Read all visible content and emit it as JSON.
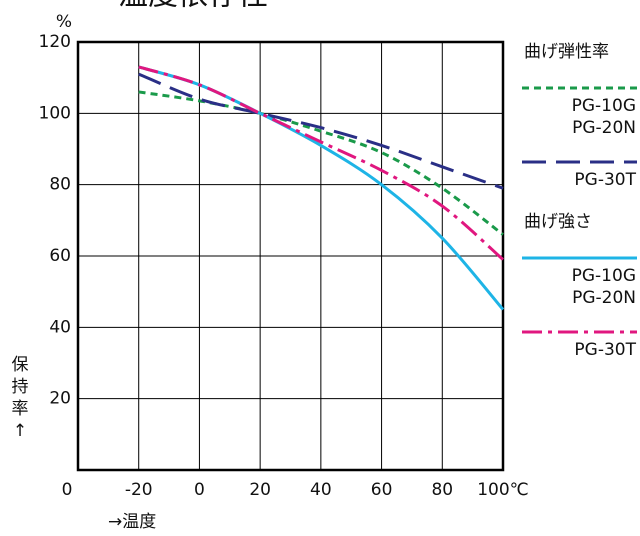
{
  "chart_data": {
    "type": "line",
    "title": "温度依存性",
    "y_unit": "%",
    "y_label": "保持率↑",
    "x_label": "→温度",
    "xlim": [
      -40,
      100
    ],
    "xticks": [
      -20,
      0,
      20,
      40,
      60,
      80,
      {
        "value": 100,
        "label": "100℃"
      }
    ],
    "ylim": [
      0,
      120
    ],
    "yticks": [
      0,
      20,
      40,
      60,
      80,
      100,
      120
    ],
    "grid": true,
    "x": [
      -20,
      0,
      20,
      40,
      60,
      80,
      100
    ],
    "series_groups": [
      {
        "title": "曲げ弾性率",
        "series": [
          {
            "name": [
              "PG-10G",
              "PG-20N"
            ],
            "color": "#1a9a4a",
            "style": "dashed",
            "values": [
              106,
              103.5,
              100,
              95,
              89,
              79,
              66
            ]
          },
          {
            "name": [
              "PG-30T"
            ],
            "color": "#2a2f86",
            "style": "longdash",
            "values": [
              111,
              104,
              100,
              96,
              91,
              85,
              79
            ]
          }
        ]
      },
      {
        "title": "曲げ強さ",
        "series": [
          {
            "name": [
              "PG-10G",
              "PG-20N"
            ],
            "color": "#1eb4e6",
            "style": "solid",
            "values": [
              113,
              108,
              100,
              91,
              80,
              65,
              45
            ]
          },
          {
            "name": [
              "PG-30T"
            ],
            "color": "#e0177f",
            "style": "dashdot",
            "values": [
              113,
              108,
              100,
              92,
              84,
              74,
              59
            ]
          }
        ]
      }
    ]
  }
}
